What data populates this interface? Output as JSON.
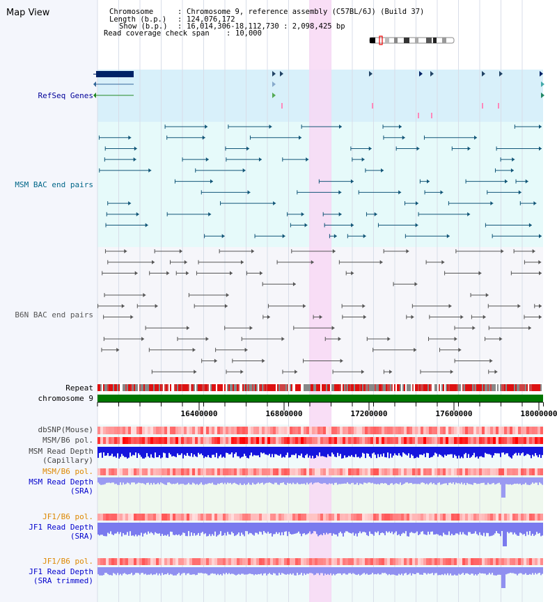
{
  "title": "Map View",
  "info": {
    "chromosome_label": "Chromosome",
    "chromosome_value": "Chromosome 9, reference assembly (C57BL/6J) (Build 37)",
    "length_label": "Length (b.p.)",
    "length_value": "124,076,172",
    "show_label": "Show (b.p.)",
    "show_value": "16,014,306-18,112,730 : 2,098,425 bp",
    "coverage_label": "Read coverage check span",
    "coverage_value": "10,000"
  },
  "tracks": {
    "refseq": "RefSeq Genes",
    "msm_bac": "MSM BAC end pairs",
    "b6n_bac": "B6N BAC end pairs",
    "repeat": "Repeat",
    "chromosome": "chromosome 9",
    "dbsnp": "dbSNP(Mouse)",
    "msm_b6_pol": "MSM/B6 pol.",
    "msm_depth_cap_1": "MSM Read Depth",
    "msm_depth_cap_2": "(Capillary)",
    "msm_b6_pol_2": "MSM/B6 pol.",
    "msm_depth_sra_1": "MSM Read Depth",
    "msm_depth_sra_2": "(SRA)",
    "jf1_b6_pol": "JF1/B6 pol.",
    "jf1_depth_sra_1": "JF1 Read Depth",
    "jf1_depth_sra_2": "(SRA)",
    "jf1_b6_pol_2": "JF1/B6 pol.",
    "jf1_depth_trim_1": "JF1 Read Depth",
    "jf1_depth_trim_2": "(SRA trimmed)"
  },
  "axis": {
    "ticks": [
      "16400000",
      "16800000",
      "17200000",
      "17600000",
      "18000000"
    ]
  },
  "colors": {
    "refseq_label": "#000099",
    "msm_label": "#006688",
    "orange_label": "#dd8800",
    "sra_label": "#0000cc",
    "highlight": "#f8d8f4",
    "chromosome_bar": "#007700",
    "depth_dark": "#1010dd",
    "depth_light": "#9898f0"
  }
}
